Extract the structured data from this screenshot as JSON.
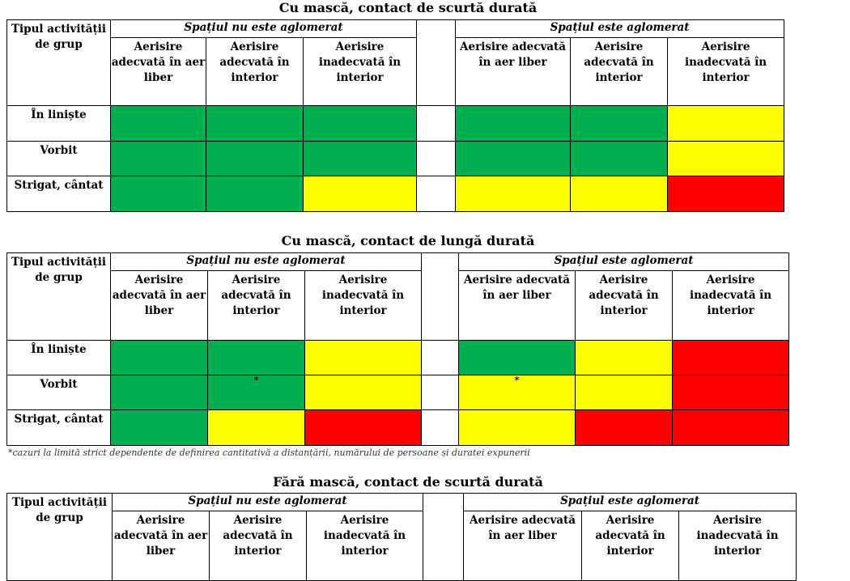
{
  "colors": {
    "green": "#00b050",
    "yellow": "#ffff00",
    "red": "#ff0000"
  },
  "header": {
    "activity": "Tipul activității de grup",
    "not_crowded": "Spațiul nu este aglomerat",
    "crowded": "Spațiul este aglomerat",
    "vent_outdoor": "Aerisire adecvată în aer liber",
    "vent_indoor": "Aerisire adecvată în interior",
    "vent_inadequate": "Aerisire inadecvată în interior"
  },
  "tables": [
    {
      "title": "Cu mască, contact de scurtă durată",
      "rows": [
        {
          "label": "În liniște",
          "cells": [
            "green",
            "green",
            "green",
            "green",
            "green",
            "yellow"
          ]
        },
        {
          "label": "Vorbit",
          "cells": [
            "green",
            "green",
            "green",
            "green",
            "green",
            "yellow"
          ]
        },
        {
          "label": "Strigat, cântat",
          "cells": [
            "green",
            "green",
            "yellow",
            "yellow",
            "yellow",
            "red"
          ]
        }
      ]
    },
    {
      "title": "Cu mască, contact de lungă durată",
      "rows": [
        {
          "label": "În liniște",
          "cells": [
            "green",
            "green",
            "yellow",
            "green",
            "yellow",
            "red"
          ]
        },
        {
          "label": "Vorbit",
          "cells": [
            "green",
            "green*",
            "yellow",
            "yellow*",
            "yellow",
            "red"
          ]
        },
        {
          "label": "Strigat, cântat",
          "cells": [
            "green",
            "yellow",
            "red",
            "yellow",
            "red",
            "red"
          ]
        }
      ]
    },
    {
      "title": "Fără mască, contact de scurtă durată",
      "rows": []
    }
  ],
  "footnote": "*cazuri la limită strict dependente de definirea cantitativă a distanțării, numărului de persoane și duratei expunerii"
}
